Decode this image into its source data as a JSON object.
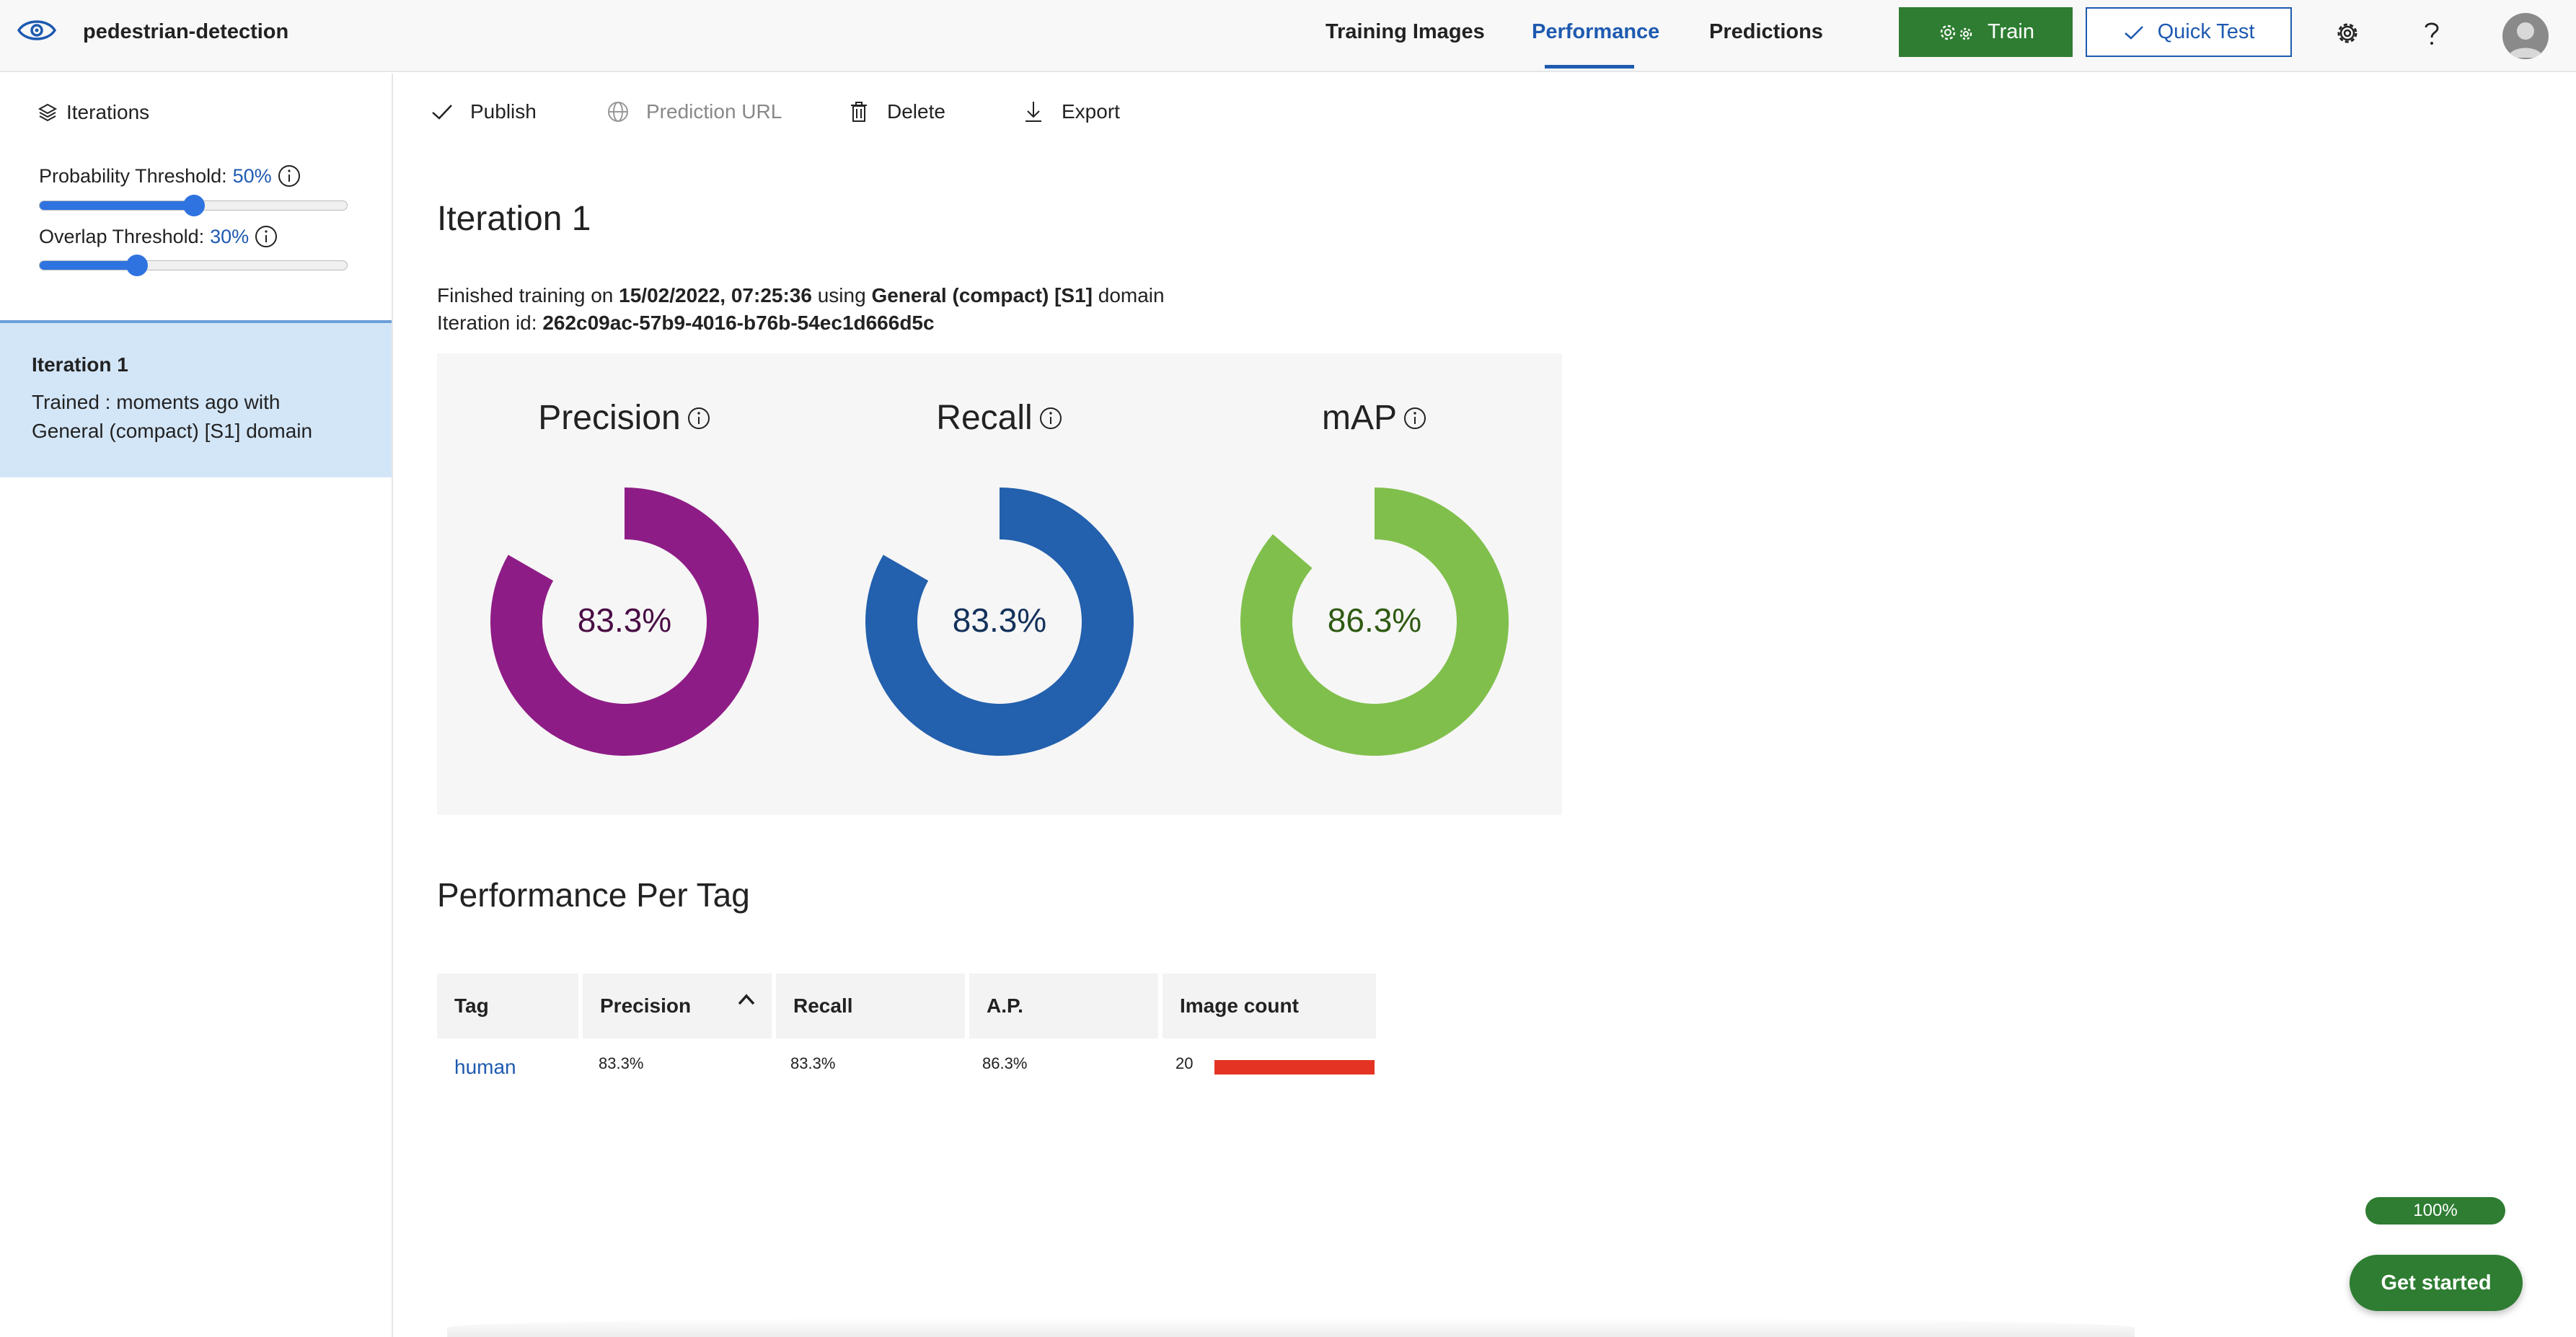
{
  "header": {
    "project_name": "pedestrian-detection",
    "tabs": [
      {
        "label": "Training Images"
      },
      {
        "label": "Performance"
      },
      {
        "label": "Predictions"
      }
    ],
    "train_label": "Train",
    "quick_test_label": "Quick Test",
    "accent_color": "#1e5ab0",
    "train_color": "#2e7d32"
  },
  "sidebar": {
    "title": "Iterations",
    "probability": {
      "label": "Probability Threshold:",
      "value": "50%",
      "fraction": 0.5
    },
    "overlap": {
      "label": "Overlap Threshold:",
      "value": "30%",
      "fraction": 0.3
    },
    "iteration": {
      "name": "Iteration 1",
      "desc_line1": "Trained : moments ago with",
      "desc_line2": "General (compact) [S1] domain"
    }
  },
  "toolbar": {
    "publish": "Publish",
    "prediction_url": "Prediction URL",
    "delete": "Delete",
    "export": "Export"
  },
  "main": {
    "title": "Iteration 1",
    "finished_prefix": "Finished training on ",
    "finished_date": "15/02/2022, 07:25:36",
    "finished_mid": " using ",
    "finished_domain": "General (compact) [S1]",
    "finished_suffix": " domain",
    "iteration_id_label": "Iteration id: ",
    "iteration_id": "262c09ac-57b9-4016-b76b-54ec1d666d5c"
  },
  "metrics": [
    {
      "name": "Precision",
      "value": "83.3%",
      "fraction": 0.833,
      "color": "#8e1c86",
      "text_color": "#4a0d45"
    },
    {
      "name": "Recall",
      "value": "83.3%",
      "fraction": 0.833,
      "color": "#2360ad",
      "text_color": "#13315a"
    },
    {
      "name": "mAP",
      "value": "86.3%",
      "fraction": 0.863,
      "color": "#80bf4c",
      "text_color": "#2f5a12"
    }
  ],
  "per_tag": {
    "title": "Performance Per Tag",
    "columns": [
      "Tag",
      "Precision",
      "Recall",
      "A.P.",
      "Image count"
    ],
    "rows": [
      {
        "tag": "human",
        "precision": "83.3%",
        "recall": "83.3%",
        "ap": "86.3%",
        "count": "20",
        "count_color": "#e53323"
      }
    ]
  },
  "footer": {
    "progress": "100%",
    "get_started": "Get started"
  }
}
